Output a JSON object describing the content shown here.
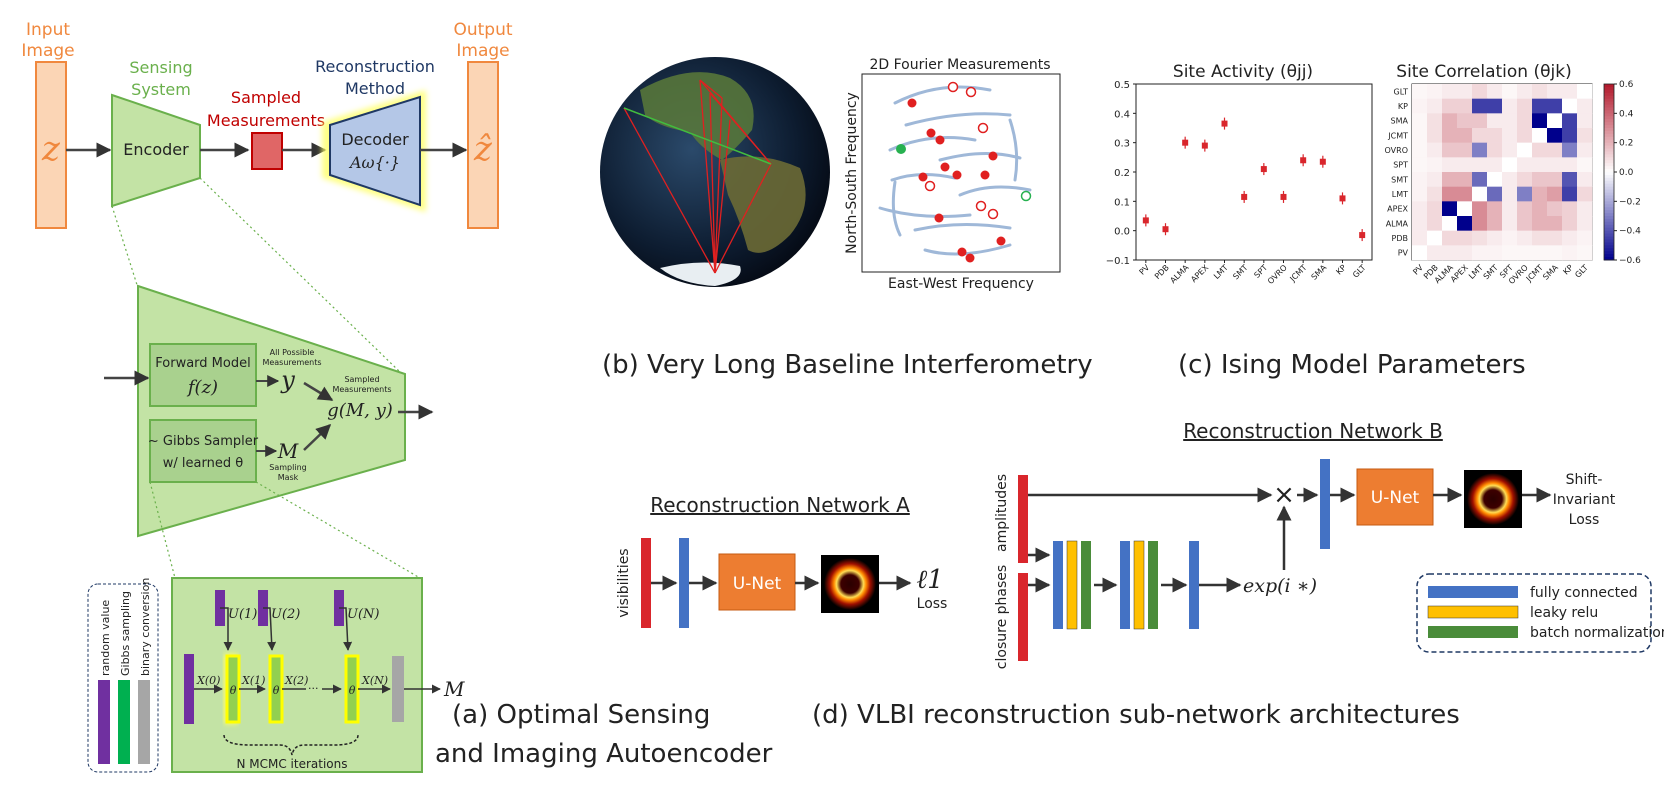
{
  "colors": {
    "orange": "#f0883e",
    "orange_fill": "#fbd5b5",
    "green_fill": "#c3e3a5",
    "green_dark": "#6ab04c",
    "red": "#d9262c",
    "blue": "#4472c4",
    "blue_fill": "#b4c7e7",
    "yellow": "#f5c518",
    "dark_green": "#4a8c3a",
    "purple": "#7030a0",
    "gibbs_green": "#00b050",
    "gray": "#a6a6a6",
    "unet": "#ed7d31",
    "heat_red": "#b2182b",
    "heat_blue": "#2166ac"
  },
  "panel_a": {
    "input_label": [
      "Input",
      "Image"
    ],
    "input_symbol": "z",
    "sensing_label": [
      "Sensing",
      "System"
    ],
    "encoder": "Encoder",
    "sampled_label": [
      "Sampled",
      "Measurements"
    ],
    "recon_label": [
      "Reconstruction",
      "Method"
    ],
    "decoder": "Decoder",
    "decoder_fn": "Aω{·}",
    "output_label": [
      "Output",
      "Image"
    ],
    "output_symbol": "ẑ",
    "forward_model": "Forward Model",
    "forward_fn": "f(z)",
    "all_possible": [
      "All Possible",
      "Measurements"
    ],
    "y_symbol": "y",
    "sampled_meas": [
      "Sampled",
      "Measurements"
    ],
    "g_fn": "g(M, y)",
    "gibbs": "~ Gibbs Sampler",
    "gibbs2": "w/ learned θ",
    "m_symbol": "M",
    "sampling_mask": [
      "Sampling",
      "Mask"
    ],
    "legend": [
      "random value",
      "Gibbs sampling",
      "binary conversion"
    ],
    "u_labels": [
      "U(1)",
      "U(2)",
      "U(N)"
    ],
    "x_labels": [
      "X(0)",
      "X(1)",
      "X(2)",
      "X(N)"
    ],
    "theta": "θ",
    "dots": "···",
    "mcmc": "N MCMC iterations",
    "m_out": "M",
    "caption": [
      "(a)  Optimal Sensing",
      "and Imaging Autoencoder"
    ]
  },
  "panel_b": {
    "fourier_title": "2D Fourier Measurements",
    "xlabel": "East-West Frequency",
    "ylabel": "North-South Frequency",
    "caption": "(b)  Very Long Baseline Interferometry"
  },
  "panel_c": {
    "activity_title": "Site Activity (θjj)",
    "correlation_title": "Site Correlation (θjk)",
    "caption": "(c)  Ising Model Parameters",
    "y_ticks": [
      "0.5",
      "0.4",
      "0.3",
      "0.2",
      "0.1",
      "0.0",
      "−0.1"
    ],
    "colorbar_ticks": [
      "0.6",
      "0.4",
      "0.2",
      "0.0",
      "−0.2",
      "−0.4",
      "−0.6"
    ]
  },
  "chart_data": [
    {
      "type": "scatter",
      "title": "Site Activity (θjj)",
      "categories": [
        "PV",
        "PDB",
        "ALMA",
        "APEX",
        "LMT",
        "SMT",
        "SPT",
        "OVRO",
        "JCMT",
        "SMA",
        "KP",
        "GLT"
      ],
      "values": [
        0.035,
        0.005,
        0.3,
        0.29,
        0.365,
        0.115,
        0.21,
        0.115,
        0.24,
        0.235,
        0.11,
        -0.015
      ],
      "ylim": [
        -0.1,
        0.5
      ]
    },
    {
      "type": "heatmap",
      "title": "Site Correlation (θjk)",
      "rows": [
        "GLT",
        "KP",
        "SMA",
        "JCMT",
        "OVRO",
        "SPT",
        "SMT",
        "LMT",
        "APEX",
        "ALMA",
        "PDB",
        "PV"
      ],
      "cols": [
        "PV",
        "PDB",
        "ALMA",
        "APEX",
        "LMT",
        "SMT",
        "SPT",
        "OVRO",
        "JCMT",
        "SMA",
        "KP",
        "GLT"
      ],
      "values": [
        [
          0.02,
          0.03,
          0.05,
          0.05,
          0.1,
          0.05,
          0.02,
          0.05,
          0.08,
          0.05,
          0.05,
          0.0
        ],
        [
          0.03,
          0.05,
          0.12,
          0.12,
          -0.45,
          -0.45,
          0.05,
          0.1,
          -0.45,
          -0.45,
          0.0,
          0.05
        ],
        [
          0.02,
          0.08,
          0.2,
          0.15,
          0.15,
          0.05,
          0.05,
          0.1,
          -0.6,
          0.0,
          -0.45,
          0.05
        ],
        [
          0.02,
          0.08,
          0.2,
          0.2,
          0.1,
          0.1,
          0.05,
          0.1,
          0.0,
          -0.6,
          -0.45,
          0.08
        ],
        [
          0.02,
          0.05,
          0.15,
          0.15,
          -0.3,
          0.1,
          0.05,
          0.0,
          0.1,
          0.1,
          -0.3,
          0.05
        ],
        [
          0.02,
          0.03,
          0.05,
          0.05,
          0.05,
          0.05,
          0.0,
          0.05,
          0.05,
          0.05,
          0.05,
          0.02
        ],
        [
          0.03,
          0.05,
          0.2,
          0.2,
          -0.35,
          0.0,
          0.05,
          0.1,
          0.15,
          0.15,
          -0.4,
          0.05
        ],
        [
          0.03,
          0.08,
          0.3,
          0.3,
          0.0,
          -0.35,
          0.05,
          -0.3,
          0.2,
          0.25,
          -0.45,
          0.1
        ],
        [
          0.05,
          0.1,
          -0.6,
          0.0,
          0.3,
          0.2,
          0.05,
          0.15,
          0.2,
          0.15,
          0.12,
          0.05
        ],
        [
          0.05,
          0.1,
          0.0,
          -0.6,
          0.3,
          0.2,
          0.05,
          0.15,
          0.2,
          0.2,
          0.12,
          0.05
        ],
        [
          0.05,
          0.0,
          0.1,
          0.1,
          0.08,
          0.05,
          0.03,
          0.05,
          0.08,
          0.08,
          0.05,
          0.03
        ],
        [
          0.0,
          0.05,
          0.05,
          0.05,
          0.03,
          0.03,
          0.02,
          0.02,
          0.02,
          0.02,
          0.03,
          0.02
        ]
      ],
      "zlim": [
        -0.6,
        0.6
      ]
    }
  ],
  "panel_d": {
    "net_a_title": "Reconstruction Network A",
    "visibilities": "visibilities",
    "unet": "U-Net",
    "loss_symbol": "ℓ1",
    "loss": "Loss",
    "net_b_title": "Reconstruction Network B",
    "amplitudes": "amplitudes",
    "closure_phases": "closure phases",
    "exp": "exp(i ∗)",
    "times": "×",
    "shift_loss": [
      "Shift-",
      "Invariant",
      "Loss"
    ],
    "legend": [
      "fully connected",
      "leaky relu",
      "batch normalization"
    ],
    "caption": "(d)  VLBI reconstruction sub-network architectures"
  }
}
